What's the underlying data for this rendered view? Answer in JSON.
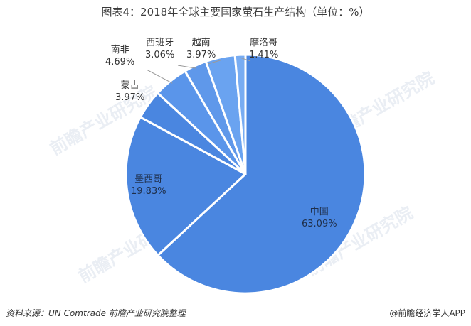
{
  "chart_data": {
    "type": "pie",
    "title": "图表4：2018年全球主要国家萤石生产结构（单位：%）",
    "slices": [
      {
        "label": "中国",
        "value": "63.09%",
        "pct": 63.09,
        "color": "#4a86e0"
      },
      {
        "label": "墨西哥",
        "value": "19.83%",
        "pct": 19.83,
        "color": "#4a86e0"
      },
      {
        "label": "蒙古",
        "value": "3.97%",
        "pct": 3.97,
        "color": "#4a86e0"
      },
      {
        "label": "南非",
        "value": "4.69%",
        "pct": 4.69,
        "color": "#5a95ea"
      },
      {
        "label": "西班牙",
        "value": "3.06%",
        "pct": 3.06,
        "color": "#5f98ea"
      },
      {
        "label": "越南",
        "value": "3.97%",
        "pct": 3.97,
        "color": "#6aa3f0"
      },
      {
        "label": "摩洛哥",
        "value": "1.41%",
        "pct": 1.41,
        "color": "#78acf2"
      }
    ]
  },
  "footer": {
    "source": "资料来源：UN Comtrade  前瞻产业研究院整理",
    "brand": "@前瞻经济学人APP"
  },
  "watermark": "前瞻产业研究院"
}
